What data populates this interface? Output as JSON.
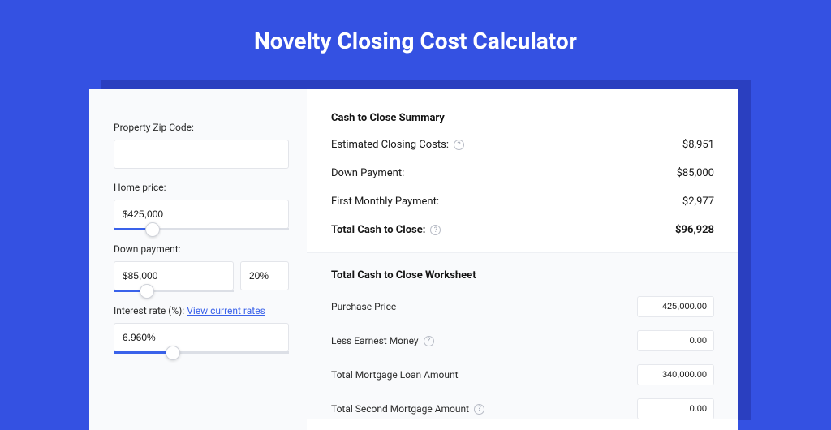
{
  "colors": {
    "page_bg": "#3451e2",
    "shadow": "#2a3fc0",
    "card_bg": "#ffffff",
    "left_panel_bg": "#f9fafc",
    "accent": "#3a62ea",
    "border": "#e3e5ea",
    "text": "#1a1a1a",
    "muted": "#9aa0ad"
  },
  "header": {
    "title": "Novelty Closing Cost Calculator"
  },
  "form": {
    "zip_label": "Property Zip Code:",
    "zip_value": "",
    "home_price_label": "Home price:",
    "home_price_value": "$425,000",
    "home_price_slider_pct": 22,
    "down_payment_label": "Down payment:",
    "down_payment_value": "$85,000",
    "down_payment_pct_value": "20%",
    "down_payment_slider_pct": 28,
    "interest_label_prefix": "Interest rate (%): ",
    "interest_link_text": "View current rates",
    "interest_rate_value": "6.960%",
    "interest_slider_pct": 34
  },
  "summary": {
    "title": "Cash to Close Summary",
    "rows": [
      {
        "label": "Estimated Closing Costs:",
        "has_help": true,
        "value": "$8,951",
        "bold": false
      },
      {
        "label": "Down Payment:",
        "has_help": false,
        "value": "$85,000",
        "bold": false
      },
      {
        "label": "First Monthly Payment:",
        "has_help": false,
        "value": "$2,977",
        "bold": false
      },
      {
        "label": "Total Cash to Close:",
        "has_help": true,
        "value": "$96,928",
        "bold": true
      }
    ]
  },
  "worksheet": {
    "title": "Total Cash to Close Worksheet",
    "rows": [
      {
        "label": "Purchase Price",
        "has_help": false,
        "value": "425,000.00"
      },
      {
        "label": "Less Earnest Money",
        "has_help": true,
        "value": "0.00"
      },
      {
        "label": "Total Mortgage Loan Amount",
        "has_help": false,
        "value": "340,000.00"
      },
      {
        "label": "Total Second Mortgage Amount",
        "has_help": true,
        "value": "0.00"
      }
    ]
  }
}
